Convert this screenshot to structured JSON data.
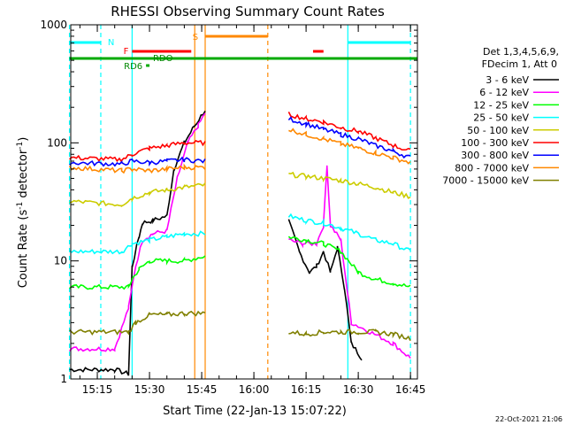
{
  "chart_data": {
    "type": "line",
    "title": "RHESSI Observing Summary Count Rates",
    "xlabel": "Start Time (22-Jan-13 15:07:22)",
    "ylabel_main": "Count Rate (s",
    "ylabel_sup1": "-1",
    "ylabel_mid": " detector",
    "ylabel_sup2": "-1",
    "ylabel_end": ")",
    "y_scale": "log",
    "ylim": [
      1,
      1000
    ],
    "xlim": [
      "15:07:22",
      "16:47:00"
    ],
    "x_ticks": [
      "15:15",
      "15:30",
      "15:45",
      "16:00",
      "16:15",
      "16:30",
      "16:45"
    ],
    "y_ticks": [
      "1",
      "10",
      "100",
      "1000"
    ],
    "footer_timestamp": "22-Oct-2021 21:06",
    "legend_header_1": "Det 1,3,4,5,6,9,",
    "legend_header_2": "FDecim 1, Att 0",
    "series": [
      {
        "name": "3 - 6 keV",
        "color": "#000000",
        "points": [
          [
            "15:07",
            1.2
          ],
          [
            "15:20",
            1.2
          ],
          [
            "15:24",
            1.1
          ],
          [
            "15:25",
            9
          ],
          [
            "15:27",
            16
          ],
          [
            "15:28",
            21
          ],
          [
            "15:31",
            22
          ],
          [
            "15:35",
            24
          ],
          [
            "15:37",
            60
          ],
          [
            "15:40",
            100
          ],
          [
            "15:43",
            140
          ],
          [
            "15:46",
            190
          ],
          [
            "16:05",
            null
          ],
          [
            "16:10",
            22
          ],
          [
            "16:13",
            12
          ],
          [
            "16:16",
            8
          ],
          [
            "16:18",
            9
          ],
          [
            "16:20",
            12
          ],
          [
            "16:22",
            8
          ],
          [
            "16:24",
            13
          ],
          [
            "16:26",
            6
          ],
          [
            "16:28",
            2
          ],
          [
            "16:31",
            1.5
          ]
        ]
      },
      {
        "name": "6 - 12 keV",
        "color": "#ff00ff",
        "points": [
          [
            "15:07",
            1.8
          ],
          [
            "15:20",
            1.8
          ],
          [
            "15:24",
            4
          ],
          [
            "15:26",
            9
          ],
          [
            "15:28",
            15
          ],
          [
            "15:31",
            17
          ],
          [
            "15:35",
            18
          ],
          [
            "15:38",
            50
          ],
          [
            "15:41",
            100
          ],
          [
            "15:44",
            140
          ],
          [
            "15:46",
            180
          ],
          [
            "16:05",
            null
          ],
          [
            "16:10",
            15
          ],
          [
            "16:14",
            14
          ],
          [
            "16:18",
            14
          ],
          [
            "16:20",
            20
          ],
          [
            "16:21",
            65
          ],
          [
            "16:22",
            20
          ],
          [
            "16:25",
            15
          ],
          [
            "16:28",
            3
          ],
          [
            "16:40",
            2
          ],
          [
            "16:45",
            1.5
          ]
        ]
      },
      {
        "name": "12 - 25 keV",
        "color": "#00ff00",
        "points": [
          [
            "15:07",
            6
          ],
          [
            "15:24",
            6
          ],
          [
            "15:25",
            7
          ],
          [
            "15:27",
            8.5
          ],
          [
            "15:30",
            10
          ],
          [
            "15:35",
            10
          ],
          [
            "15:40",
            10
          ],
          [
            "15:46",
            11
          ],
          [
            "16:05",
            null
          ],
          [
            "16:10",
            16
          ],
          [
            "16:15",
            15
          ],
          [
            "16:20",
            14
          ],
          [
            "16:25",
            12
          ],
          [
            "16:30",
            8
          ],
          [
            "16:35",
            7
          ],
          [
            "16:40",
            6.5
          ],
          [
            "16:45",
            6
          ]
        ]
      },
      {
        "name": "25 - 50 keV",
        "color": "#00ffff",
        "points": [
          [
            "15:07",
            12
          ],
          [
            "15:22",
            12
          ],
          [
            "15:25",
            14
          ],
          [
            "15:30",
            15
          ],
          [
            "15:35",
            16
          ],
          [
            "15:40",
            17
          ],
          [
            "15:46",
            17
          ],
          [
            "16:05",
            null
          ],
          [
            "16:10",
            24
          ],
          [
            "16:15",
            22
          ],
          [
            "16:20",
            21
          ],
          [
            "16:25",
            19
          ],
          [
            "16:30",
            17
          ],
          [
            "16:35",
            15
          ],
          [
            "16:40",
            14
          ],
          [
            "16:45",
            12
          ]
        ]
      },
      {
        "name": "50 - 100 keV",
        "color": "#cccc00",
        "points": [
          [
            "15:07",
            32
          ],
          [
            "15:22",
            30
          ],
          [
            "15:25",
            34
          ],
          [
            "15:30",
            38
          ],
          [
            "15:35",
            40
          ],
          [
            "15:40",
            42
          ],
          [
            "15:46",
            44
          ],
          [
            "16:05",
            null
          ],
          [
            "16:10",
            54
          ],
          [
            "16:15",
            52
          ],
          [
            "16:20",
            50
          ],
          [
            "16:25",
            48
          ],
          [
            "16:30",
            45
          ],
          [
            "16:35",
            42
          ],
          [
            "16:40",
            38
          ],
          [
            "16:45",
            35
          ]
        ]
      },
      {
        "name": "100 - 300 keV",
        "color": "#ff0000",
        "points": [
          [
            "15:07",
            75
          ],
          [
            "15:22",
            72
          ],
          [
            "15:25",
            80
          ],
          [
            "15:30",
            90
          ],
          [
            "15:35",
            95
          ],
          [
            "15:40",
            100
          ],
          [
            "15:46",
            100
          ],
          [
            "16:05",
            null
          ],
          [
            "16:10",
            175
          ],
          [
            "16:15",
            160
          ],
          [
            "16:20",
            150
          ],
          [
            "16:25",
            135
          ],
          [
            "16:30",
            125
          ],
          [
            "16:35",
            110
          ],
          [
            "16:40",
            95
          ],
          [
            "16:45",
            85
          ]
        ]
      },
      {
        "name": "300 - 800 keV",
        "color": "#0000ff",
        "points": [
          [
            "15:07",
            68
          ],
          [
            "15:22",
            66
          ],
          [
            "15:25",
            70
          ],
          [
            "15:30",
            68
          ],
          [
            "15:35",
            70
          ],
          [
            "15:40",
            72
          ],
          [
            "15:46",
            70
          ],
          [
            "16:05",
            null
          ],
          [
            "16:10",
            160
          ],
          [
            "16:15",
            145
          ],
          [
            "16:20",
            130
          ],
          [
            "16:25",
            118
          ],
          [
            "16:30",
            108
          ],
          [
            "16:35",
            95
          ],
          [
            "16:40",
            85
          ],
          [
            "16:45",
            75
          ]
        ]
      },
      {
        "name": "800 - 7000 keV",
        "color": "#ff8800",
        "points": [
          [
            "15:07",
            62
          ],
          [
            "15:22",
            58
          ],
          [
            "15:25",
            60
          ],
          [
            "15:30",
            58
          ],
          [
            "15:35",
            60
          ],
          [
            "15:40",
            62
          ],
          [
            "15:46",
            62
          ],
          [
            "16:05",
            null
          ],
          [
            "16:10",
            130
          ],
          [
            "16:15",
            118
          ],
          [
            "16:20",
            108
          ],
          [
            "16:25",
            98
          ],
          [
            "16:30",
            90
          ],
          [
            "16:35",
            82
          ],
          [
            "16:40",
            75
          ],
          [
            "16:45",
            68
          ]
        ]
      },
      {
        "name": "7000 - 15000 keV",
        "color": "#808000",
        "points": [
          [
            "15:07",
            2.5
          ],
          [
            "15:24",
            2.5
          ],
          [
            "15:26",
            3
          ],
          [
            "15:30",
            3.5
          ],
          [
            "15:35",
            3.5
          ],
          [
            "15:40",
            3.6
          ],
          [
            "15:46",
            3.6
          ],
          [
            "16:05",
            null
          ],
          [
            "16:10",
            2.5
          ],
          [
            "16:15",
            2.4
          ],
          [
            "16:20",
            2.5
          ],
          [
            "16:25",
            2.5
          ],
          [
            "16:30",
            2.5
          ],
          [
            "16:35",
            2.5
          ],
          [
            "16:40",
            2.4
          ],
          [
            "16:45",
            2.2
          ]
        ]
      }
    ],
    "flag_bars": [
      {
        "label": "N",
        "color": "#00ffff",
        "start": "15:07",
        "end": "15:16",
        "level": 1
      },
      {
        "label": "N",
        "color": "#00ffff",
        "start": "16:27",
        "end": "16:45",
        "level": 1
      },
      {
        "label": "S",
        "color": "#ff8800",
        "start": "15:46",
        "end": "16:04",
        "level": 0
      },
      {
        "label": "F",
        "color": "#ff0000",
        "start": "15:25",
        "end": "15:42",
        "level": 2
      },
      {
        "label": "F",
        "color": "#ff0000",
        "start": "16:17",
        "end": "16:20",
        "level": 2
      },
      {
        "label": "RDO",
        "color": "#00aa00",
        "start": "15:07",
        "end": "16:47",
        "level": 3
      },
      {
        "label": "RD6",
        "color": "#00aa00",
        "start": "15:29",
        "end": "15:30",
        "level": 4
      }
    ],
    "flag_text": {
      "N": "N",
      "S": "S",
      "F": "F",
      "RDO": "RDO",
      "RD6": "RD6"
    },
    "vertical_markers": [
      {
        "time": "15:07",
        "color": "#00ffff",
        "style": "dashed"
      },
      {
        "time": "15:16",
        "color": "#00ffff",
        "style": "dashed"
      },
      {
        "time": "15:25",
        "color": "#00ffff",
        "style": "solid"
      },
      {
        "time": "15:43",
        "color": "#ff8800",
        "style": "solid"
      },
      {
        "time": "15:46",
        "color": "#ff8800",
        "style": "solid"
      },
      {
        "time": "16:04",
        "color": "#ff8800",
        "style": "dashed"
      },
      {
        "time": "16:27",
        "color": "#00ffff",
        "style": "solid"
      },
      {
        "time": "16:45",
        "color": "#00ffff",
        "style": "dashed"
      }
    ]
  }
}
